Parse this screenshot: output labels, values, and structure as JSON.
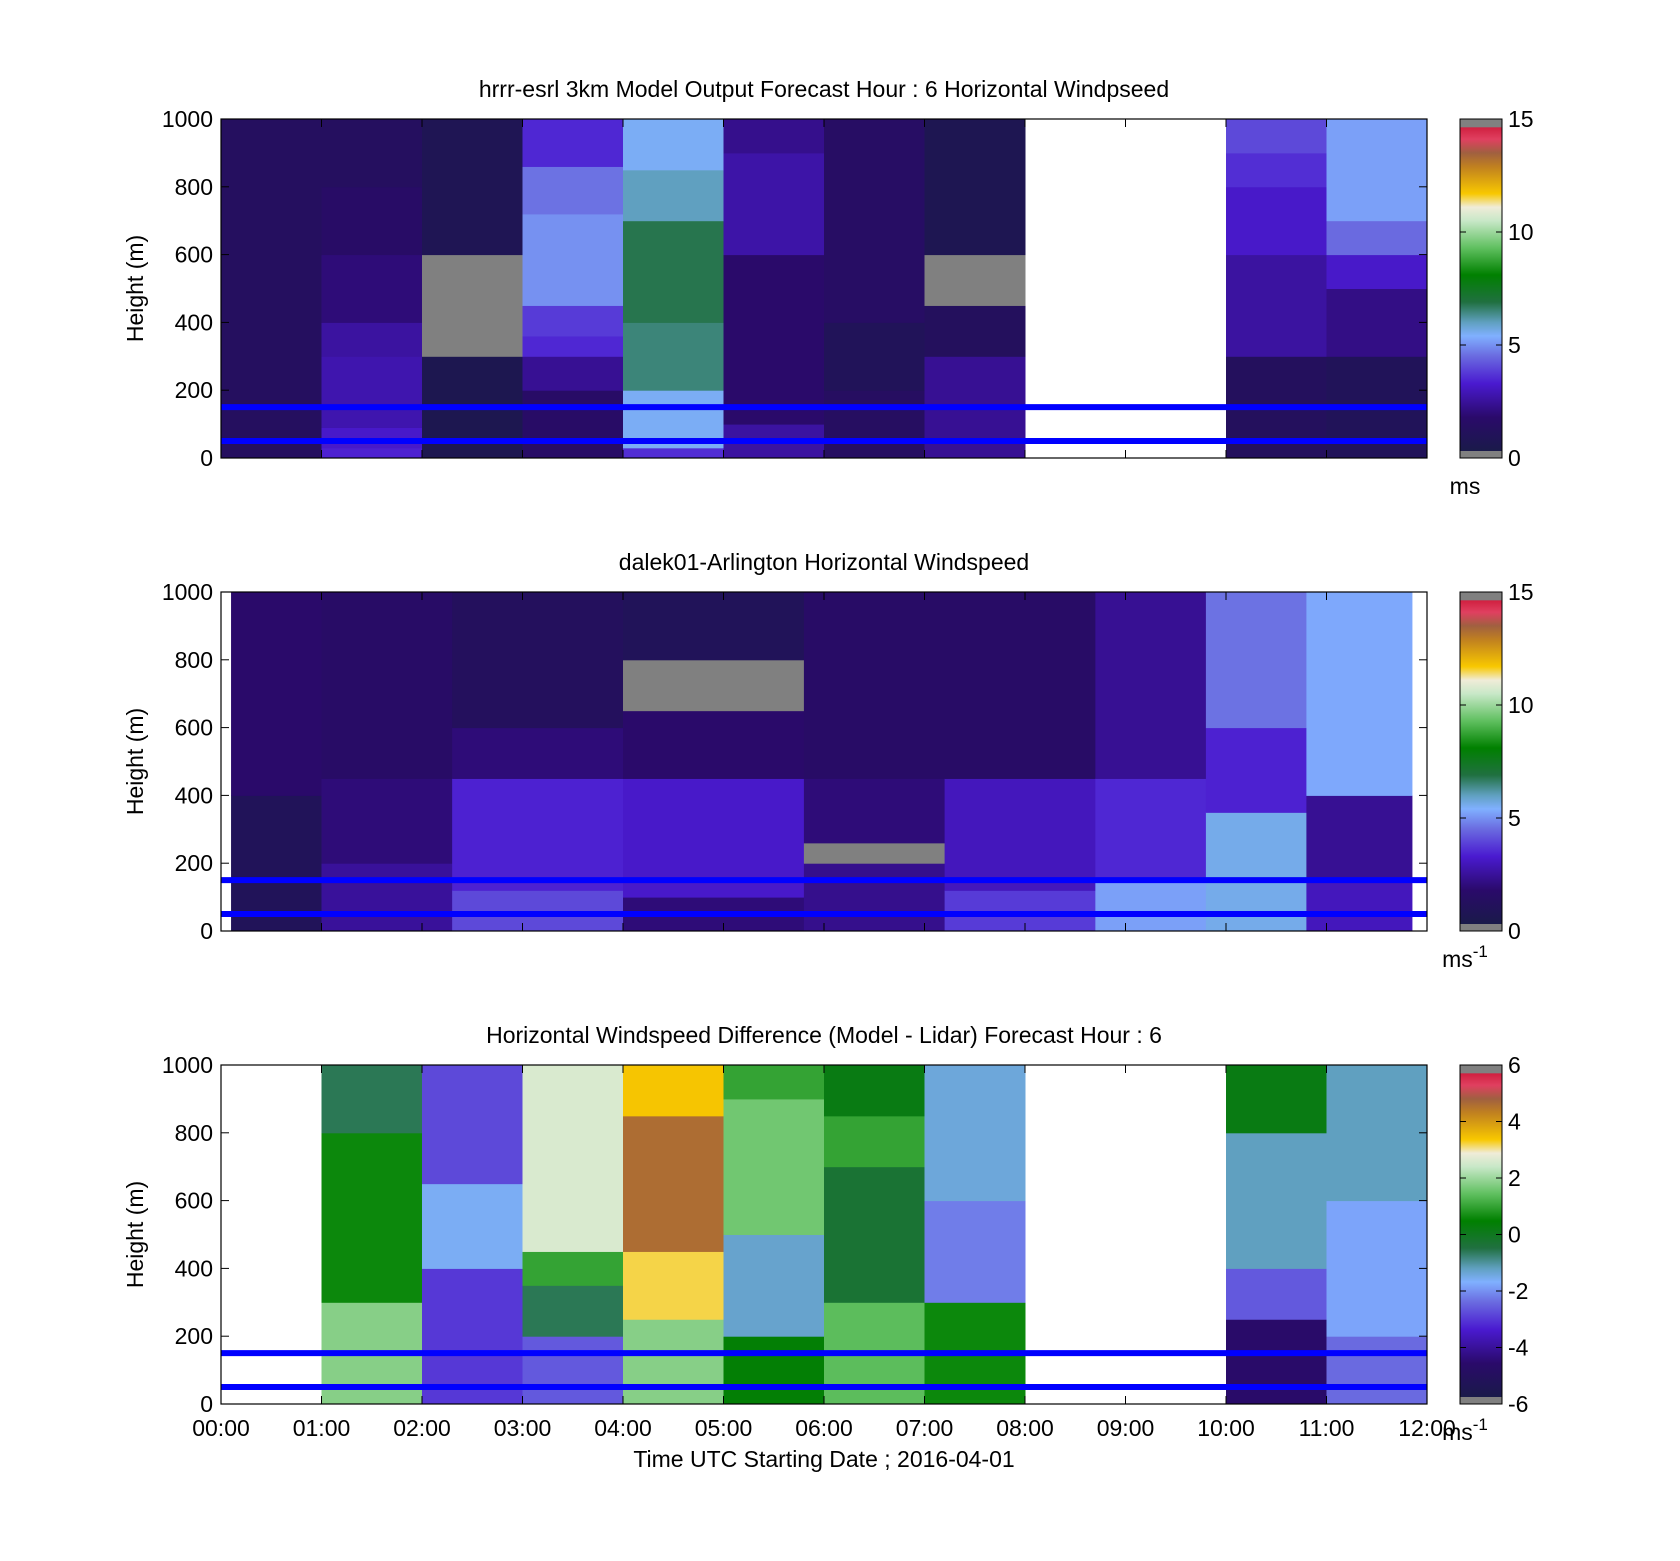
{
  "colorbar_stops": [
    [
      0.0,
      "#808080"
    ],
    [
      0.02,
      "#808080"
    ],
    [
      0.021,
      "#1a1a4a"
    ],
    [
      0.12,
      "#2a0a6a"
    ],
    [
      0.22,
      "#4a1ad0"
    ],
    [
      0.3,
      "#6a6ae0"
    ],
    [
      0.36,
      "#80b0ff"
    ],
    [
      0.4,
      "#60a0c0"
    ],
    [
      0.46,
      "#207040"
    ],
    [
      0.54,
      "#008000"
    ],
    [
      0.62,
      "#60c060"
    ],
    [
      0.7,
      "#c8e8c8"
    ],
    [
      0.74,
      "#f0ecd8"
    ],
    [
      0.78,
      "#f8c800"
    ],
    [
      0.86,
      "#c08020"
    ],
    [
      0.9,
      "#a06040"
    ],
    [
      0.94,
      "#e04060"
    ],
    [
      0.975,
      "#d02040"
    ],
    [
      0.976,
      "#808080"
    ],
    [
      1.0,
      "#808080"
    ]
  ],
  "overlay_line_color": "#0000ff",
  "chart_data": [
    {
      "type": "heatmap",
      "title": "hrrr-esrl 3km Model Output   Forecast Hour : 6 Horizontal Windpseed",
      "ylabel": "Height (m)",
      "xlabel": "",
      "ylim": [
        0,
        1000
      ],
      "xlim": [
        0,
        12
      ],
      "yticks": [
        "0",
        "200",
        "400",
        "600",
        "800",
        "1000"
      ],
      "xticks": [],
      "colorbar": {
        "range": [
          0,
          15
        ],
        "ticks": [
          "0",
          "5",
          "10",
          "15"
        ],
        "unit": "ms",
        "unit_sup": ""
      },
      "reference_heights": [
        150,
        50
      ],
      "columns": [
        {
          "x0": 0,
          "x1": 1,
          "cells": [
            [
              0,
              1000,
              1.3
            ]
          ]
        },
        {
          "x0": 1,
          "x1": 2,
          "cells": [
            [
              0,
              30,
              3.4
            ],
            [
              30,
              90,
              3.2
            ],
            [
              90,
              300,
              2.8
            ],
            [
              300,
              400,
              2.6
            ],
            [
              400,
              600,
              2.0
            ],
            [
              600,
              800,
              1.6
            ],
            [
              800,
              1000,
              1.3
            ]
          ]
        },
        {
          "x0": 2,
          "x1": 3,
          "cells": [
            [
              0,
              300,
              0.6
            ],
            [
              300,
              500,
              0.05
            ],
            [
              500,
              600,
              0.3
            ],
            [
              600,
              1000,
              0.8
            ]
          ]
        },
        {
          "x0": 3,
          "x1": 4,
          "cells": [
            [
              0,
              200,
              1.6
            ],
            [
              200,
              300,
              2.4
            ],
            [
              300,
              360,
              3.5
            ],
            [
              360,
              450,
              3.8
            ],
            [
              450,
              720,
              5.0
            ],
            [
              720,
              860,
              4.6
            ],
            [
              860,
              1000,
              3.5
            ]
          ]
        },
        {
          "x0": 4,
          "x1": 5,
          "cells": [
            [
              0,
              30,
              3.6
            ],
            [
              30,
              200,
              5.5
            ],
            [
              200,
              400,
              6.5
            ],
            [
              400,
              700,
              6.8
            ],
            [
              700,
              850,
              6.0
            ],
            [
              850,
              1000,
              5.5
            ]
          ]
        },
        {
          "x0": 5,
          "x1": 6,
          "cells": [
            [
              0,
              100,
              2.6
            ],
            [
              100,
              600,
              1.8
            ],
            [
              600,
              900,
              2.7
            ],
            [
              900,
              1000,
              2.3
            ]
          ]
        },
        {
          "x0": 6,
          "x1": 7,
          "cells": [
            [
              0,
              200,
              1.4
            ],
            [
              200,
              400,
              1.0
            ],
            [
              400,
              1000,
              1.5
            ]
          ]
        },
        {
          "x0": 7,
          "x1": 8,
          "cells": [
            [
              0,
              300,
              2.4
            ],
            [
              300,
              450,
              1.2
            ],
            [
              450,
              600,
              0.05
            ],
            [
              600,
              1000,
              0.7
            ]
          ]
        },
        {
          "x0": 10,
          "x1": 11,
          "cells": [
            [
              0,
              300,
              1.2
            ],
            [
              300,
              600,
              2.6
            ],
            [
              600,
              800,
              3.2
            ],
            [
              800,
              900,
              3.6
            ],
            [
              900,
              1000,
              4.0
            ]
          ]
        },
        {
          "x0": 11,
          "x1": 12,
          "cells": [
            [
              0,
              300,
              1.0
            ],
            [
              300,
              500,
              2.2
            ],
            [
              500,
              600,
              3.2
            ],
            [
              600,
              700,
              4.5
            ],
            [
              700,
              1000,
              5.2
            ]
          ]
        }
      ]
    },
    {
      "type": "heatmap",
      "title": "dalek01-Arlington  Horizontal Windspeed",
      "ylabel": "Height (m)",
      "xlabel": "",
      "ylim": [
        0,
        1000
      ],
      "xlim": [
        0,
        12
      ],
      "yticks": [
        "0",
        "200",
        "400",
        "600",
        "800",
        "1000"
      ],
      "xticks": [],
      "colorbar": {
        "range": [
          0,
          15
        ],
        "ticks": [
          "0",
          "5",
          "10",
          "15"
        ],
        "unit": "ms",
        "unit_sup": "-1"
      },
      "reference_heights": [
        150,
        50
      ],
      "columns": [
        {
          "x0": 0.1,
          "x1": 1.0,
          "cells": [
            [
              0,
              400,
              1.0
            ],
            [
              400,
              1000,
              1.8
            ]
          ]
        },
        {
          "x0": 1.0,
          "x1": 2.3,
          "cells": [
            [
              0,
              200,
              2.5
            ],
            [
              200,
              450,
              2.0
            ],
            [
              450,
              1000,
              1.6
            ]
          ]
        },
        {
          "x0": 2.3,
          "x1": 4.0,
          "cells": [
            [
              0,
              120,
              4.0
            ],
            [
              120,
              450,
              3.4
            ],
            [
              450,
              600,
              2.0
            ],
            [
              600,
              1000,
              1.2
            ]
          ]
        },
        {
          "x0": 4.0,
          "x1": 5.8,
          "cells": [
            [
              0,
              100,
              2.0
            ],
            [
              100,
              450,
              3.2
            ],
            [
              450,
              650,
              1.8
            ],
            [
              650,
              800,
              0.05
            ],
            [
              800,
              1000,
              1.0
            ]
          ]
        },
        {
          "x0": 5.8,
          "x1": 7.2,
          "cells": [
            [
              0,
              200,
              2.3
            ],
            [
              200,
              260,
              0.05
            ],
            [
              260,
              450,
              2.0
            ],
            [
              450,
              1000,
              1.6
            ]
          ]
        },
        {
          "x0": 7.2,
          "x1": 8.7,
          "cells": [
            [
              0,
              120,
              3.8
            ],
            [
              120,
              450,
              3.0
            ],
            [
              450,
              1000,
              1.6
            ]
          ]
        },
        {
          "x0": 8.7,
          "x1": 9.8,
          "cells": [
            [
              0,
              150,
              5.2
            ],
            [
              150,
              450,
              3.5
            ],
            [
              450,
              1000,
              2.4
            ]
          ]
        },
        {
          "x0": 9.8,
          "x1": 10.8,
          "cells": [
            [
              0,
              350,
              5.6
            ],
            [
              350,
              600,
              3.4
            ],
            [
              600,
              1000,
              4.6
            ]
          ]
        },
        {
          "x0": 10.8,
          "x1": 11.85,
          "cells": [
            [
              0,
              150,
              3.0
            ],
            [
              150,
              400,
              2.4
            ],
            [
              400,
              1000,
              5.3
            ]
          ]
        }
      ]
    },
    {
      "type": "heatmap",
      "title": "Horizontal Windspeed Difference (Model - Lidar) Forecast Hour : 6",
      "ylabel": "Height (m)",
      "xlabel": "Time UTC  Starting Date ; 2016-04-01",
      "ylim": [
        0,
        1000
      ],
      "xlim": [
        0,
        12
      ],
      "yticks": [
        "0",
        "200",
        "400",
        "600",
        "800",
        "1000"
      ],
      "xticks": [
        "00:00",
        "01:00",
        "02:00",
        "03:00",
        "04:00",
        "05:00",
        "06:00",
        "07:00",
        "08:00",
        "09:00",
        "10:00",
        "11:00",
        "12:00"
      ],
      "colorbar": {
        "range": [
          -6,
          6
        ],
        "ticks": [
          "-6",
          "-4",
          "-2",
          "0",
          "2",
          "4",
          "6"
        ],
        "unit": "ms",
        "unit_sup": "-1"
      },
      "reference_heights": [
        150,
        50
      ],
      "columns": [
        {
          "x0": 1,
          "x1": 2,
          "cells": [
            [
              0,
              300,
              1.8
            ],
            [
              300,
              800,
              0.6
            ],
            [
              800,
              1000,
              -0.6
            ]
          ]
        },
        {
          "x0": 2,
          "x1": 3,
          "cells": [
            [
              0,
              400,
              -3.0
            ],
            [
              400,
              650,
              -1.6
            ],
            [
              650,
              1000,
              -2.8
            ]
          ]
        },
        {
          "x0": 3,
          "x1": 4,
          "cells": [
            [
              0,
              200,
              -2.6
            ],
            [
              200,
              350,
              -0.6
            ],
            [
              350,
              450,
              1.0
            ],
            [
              450,
              1000,
              2.6
            ]
          ]
        },
        {
          "x0": 4,
          "x1": 5,
          "cells": [
            [
              0,
              250,
              1.8
            ],
            [
              250,
              450,
              3.2
            ],
            [
              450,
              850,
              4.6
            ],
            [
              850,
              1000,
              3.4
            ]
          ]
        },
        {
          "x0": 5,
          "x1": 6,
          "cells": [
            [
              0,
              200,
              0.4
            ],
            [
              200,
              500,
              -1.3
            ],
            [
              500,
              900,
              1.6
            ],
            [
              900,
              1000,
              1.0
            ]
          ]
        },
        {
          "x0": 6,
          "x1": 7,
          "cells": [
            [
              0,
              300,
              1.4
            ],
            [
              300,
              700,
              -0.3
            ],
            [
              700,
              850,
              1.0
            ],
            [
              850,
              1000,
              0.2
            ]
          ]
        },
        {
          "x0": 7,
          "x1": 8,
          "cells": [
            [
              0,
              300,
              0.6
            ],
            [
              300,
              600,
              -2.2
            ],
            [
              600,
              1000,
              -1.4
            ]
          ]
        },
        {
          "x0": 10,
          "x1": 11,
          "cells": [
            [
              0,
              250,
              -4.6
            ],
            [
              250,
              400,
              -2.6
            ],
            [
              400,
              800,
              -1.2
            ],
            [
              800,
              1000,
              0.2
            ]
          ]
        },
        {
          "x0": 11,
          "x1": 12,
          "cells": [
            [
              0,
              200,
              -2.4
            ],
            [
              200,
              600,
              -1.8
            ],
            [
              600,
              1000,
              -1.2
            ]
          ]
        }
      ]
    }
  ]
}
